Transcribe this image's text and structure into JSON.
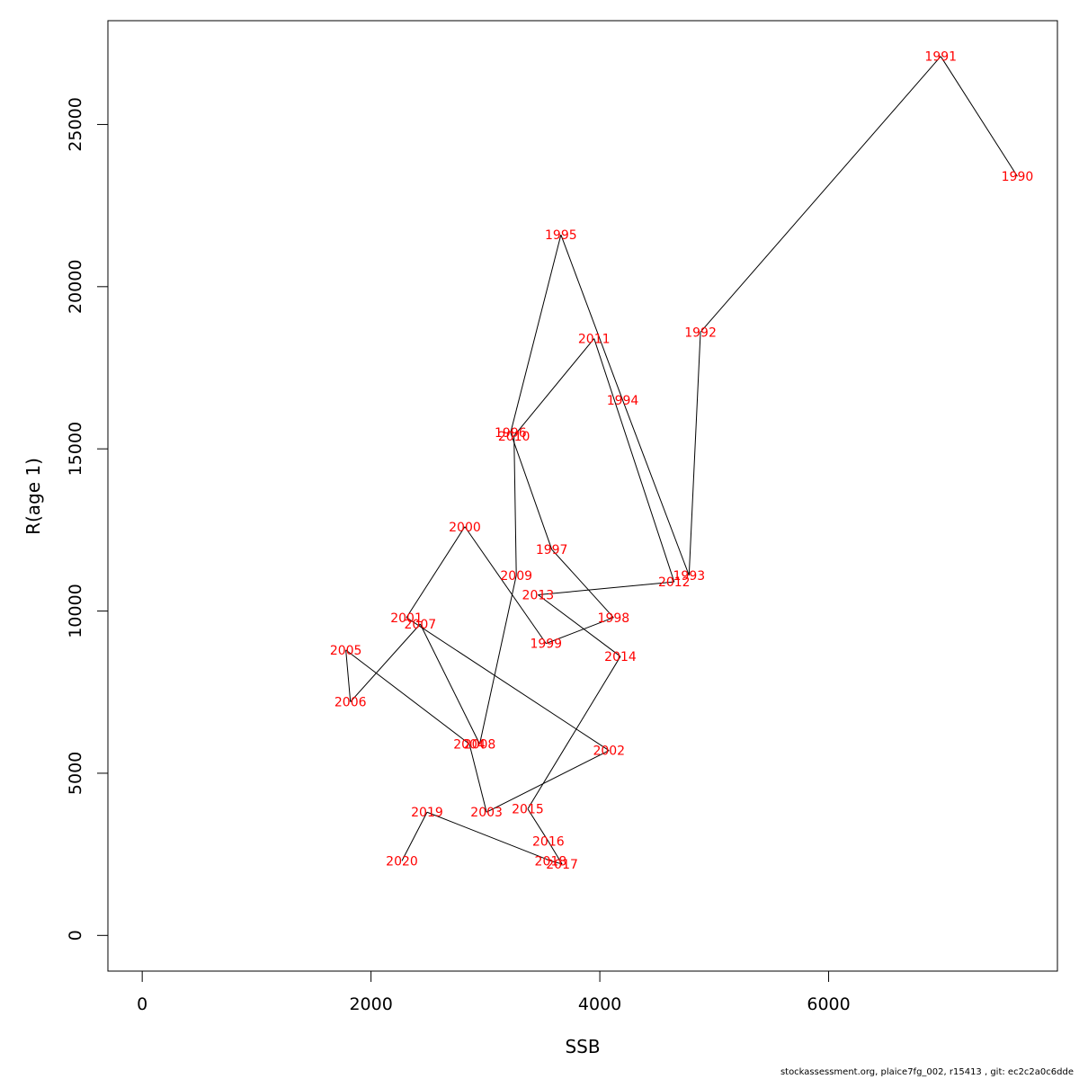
{
  "chart_data": {
    "type": "line",
    "title": "",
    "xlabel": "SSB",
    "ylabel": "R(age 1)",
    "xlim": [
      -300,
      8000
    ],
    "ylim": [
      -1100,
      28200
    ],
    "x_ticks": [
      0,
      2000,
      4000,
      6000
    ],
    "x_tick_labels": [
      "0",
      "2000",
      "4000",
      "6000"
    ],
    "y_ticks": [
      0,
      5000,
      10000,
      15000,
      20000,
      25000
    ],
    "y_tick_labels": [
      "0",
      "5000",
      "10000",
      "15000",
      "20000",
      "25000"
    ],
    "grid": false,
    "label_color": "#ff0000",
    "line_color": "#000000",
    "points": [
      {
        "year": "1990",
        "x": 7650,
        "y": 23400
      },
      {
        "year": "1991",
        "x": 6980,
        "y": 27100
      },
      {
        "year": "1992",
        "x": 4880,
        "y": 18600
      },
      {
        "year": "1993",
        "x": 4780,
        "y": 11100
      },
      {
        "year": "1994",
        "x": 4200,
        "y": 16500
      },
      {
        "year": "1995",
        "x": 3660,
        "y": 21600
      },
      {
        "year": "1996",
        "x": 3220,
        "y": 15500
      },
      {
        "year": "1997",
        "x": 3580,
        "y": 11900
      },
      {
        "year": "1998",
        "x": 4120,
        "y": 9800
      },
      {
        "year": "1999",
        "x": 3530,
        "y": 9000
      },
      {
        "year": "2000",
        "x": 2820,
        "y": 12600
      },
      {
        "year": "2001",
        "x": 2310,
        "y": 9800
      },
      {
        "year": "2002",
        "x": 4080,
        "y": 5700
      },
      {
        "year": "2003",
        "x": 3010,
        "y": 3800
      },
      {
        "year": "2004",
        "x": 2860,
        "y": 5900
      },
      {
        "year": "2005",
        "x": 1780,
        "y": 8800
      },
      {
        "year": "2006",
        "x": 1820,
        "y": 7200
      },
      {
        "year": "2007",
        "x": 2430,
        "y": 9600
      },
      {
        "year": "2008",
        "x": 2950,
        "y": 5900
      },
      {
        "year": "2009",
        "x": 3270,
        "y": 11100
      },
      {
        "year": "2010",
        "x": 3250,
        "y": 15400
      },
      {
        "year": "2011",
        "x": 3950,
        "y": 18400
      },
      {
        "year": "2012",
        "x": 4650,
        "y": 10900
      },
      {
        "year": "2013",
        "x": 3460,
        "y": 10500
      },
      {
        "year": "2014",
        "x": 4180,
        "y": 8600
      },
      {
        "year": "2015",
        "x": 3370,
        "y": 3900
      },
      {
        "year": "2016",
        "x": 3550,
        "y": 2900
      },
      {
        "year": "2017",
        "x": 3670,
        "y": 2200
      },
      {
        "year": "2018",
        "x": 3570,
        "y": 2300
      },
      {
        "year": "2019",
        "x": 2490,
        "y": 3800
      },
      {
        "year": "2020",
        "x": 2270,
        "y": 2300
      }
    ]
  },
  "footer": "stockassessment.org, plaice7fg_002, r15413 , git: ec2c2a0c6dde"
}
